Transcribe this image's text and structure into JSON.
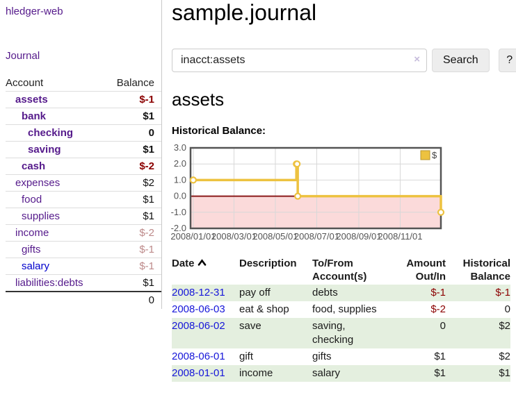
{
  "app": {
    "brand": "hledger-web",
    "nav_journal": "Journal"
  },
  "sidebar": {
    "accounts_header": {
      "account": "Account",
      "balance": "Balance"
    },
    "accounts": [
      {
        "name": "assets",
        "indent": 1,
        "bold": true,
        "balance": "$-1",
        "balance_tone": "negative-strong"
      },
      {
        "name": "bank",
        "indent": 2,
        "bold": true,
        "balance": "$1",
        "balance_tone": "normal"
      },
      {
        "name": "checking",
        "indent": 3,
        "bold": true,
        "balance": "0",
        "balance_tone": "normal"
      },
      {
        "name": "saving",
        "indent": 3,
        "bold": true,
        "balance": "$1",
        "balance_tone": "normal"
      },
      {
        "name": "cash",
        "indent": 2,
        "bold": true,
        "balance": "$-2",
        "balance_tone": "negative-strong"
      },
      {
        "name": "expenses",
        "indent": 1,
        "bold": false,
        "balance": "$2",
        "balance_tone": "normal"
      },
      {
        "name": "food",
        "indent": 2,
        "bold": false,
        "balance": "$1",
        "balance_tone": "normal"
      },
      {
        "name": "supplies",
        "indent": 2,
        "bold": false,
        "balance": "$1",
        "balance_tone": "normal"
      },
      {
        "name": "income",
        "indent": 1,
        "bold": false,
        "balance": "$-2",
        "balance_tone": "negative-soft"
      },
      {
        "name": "gifts",
        "indent": 2,
        "bold": false,
        "balance": "$-1",
        "balance_tone": "negative-soft"
      },
      {
        "name": "salary",
        "indent": 2,
        "bold": false,
        "balance": "$-1",
        "balance_tone": "negative-soft",
        "unvisited": true
      },
      {
        "name": "liabilities:debts",
        "indent": 1,
        "bold": false,
        "balance": "$1",
        "balance_tone": "normal"
      }
    ],
    "total": "0"
  },
  "main": {
    "title": "sample.journal",
    "search": {
      "value": "inacct:assets",
      "clear_label": "×",
      "button": "Search",
      "help_button": "?"
    },
    "account_heading": "assets",
    "chart_heading": "Historical Balance:"
  },
  "chart_data": {
    "type": "line",
    "title": "Historical Balance",
    "series": [
      {
        "name": "$",
        "color": "#edc240",
        "step": true,
        "points": [
          [
            "2008-01-01",
            1
          ],
          [
            "2008-06-01",
            2
          ],
          [
            "2008-06-02",
            2
          ],
          [
            "2008-06-03",
            0
          ],
          [
            "2008-12-31",
            -1
          ]
        ]
      }
    ],
    "x_ticks": [
      "2008/01/01",
      "2008/03/01",
      "2008/05/01",
      "2008/07/01",
      "2008/09/01",
      "2008/11/01"
    ],
    "y_ticks": [
      "3.0",
      "2.0",
      "1.0",
      "0.0",
      "-1.0",
      "-2.0"
    ],
    "ylim": [
      -2,
      3
    ],
    "x_range": [
      "2008-01-01",
      "2008-12-31"
    ],
    "grid": true,
    "legend_position": "top-right",
    "negative_region_color": "#fbdada",
    "zero_line_color": "#8b1a1a",
    "grid_line_color": "#d8d8d8",
    "border_color": "#545454"
  },
  "transactions": {
    "headers": {
      "date": "Date",
      "description": "Description",
      "accounts": "To/From Account(s)",
      "amount": "Amount Out/In",
      "balance": "Historical Balance"
    },
    "rows": [
      {
        "date": "2008-12-31",
        "description": "pay off",
        "accounts": "debts",
        "amount": "$-1",
        "amount_negative": true,
        "balance": "$-1",
        "balance_negative": true
      },
      {
        "date": "2008-06-03",
        "description": "eat & shop",
        "accounts": "food, supplies",
        "amount": "$-2",
        "amount_negative": true,
        "balance": "0",
        "balance_negative": false
      },
      {
        "date": "2008-06-02",
        "description": "save",
        "accounts": "saving, checking",
        "amount": "0",
        "amount_negative": false,
        "balance": "$2",
        "balance_negative": false
      },
      {
        "date": "2008-06-01",
        "description": "gift",
        "accounts": "gifts",
        "amount": "$1",
        "amount_negative": false,
        "balance": "$2",
        "balance_negative": false
      },
      {
        "date": "2008-01-01",
        "description": "income",
        "accounts": "salary",
        "amount": "$1",
        "amount_negative": false,
        "balance": "$1",
        "balance_negative": false
      }
    ]
  },
  "colors": {
    "link_visited_purple": "#551a8b",
    "link_unvisited_blue": "#0000cc",
    "negative_strong": "#8b0000",
    "negative_soft": "#bd8a8a",
    "row_stripe_green": "#e4efdf",
    "series_gold": "#edc240"
  }
}
